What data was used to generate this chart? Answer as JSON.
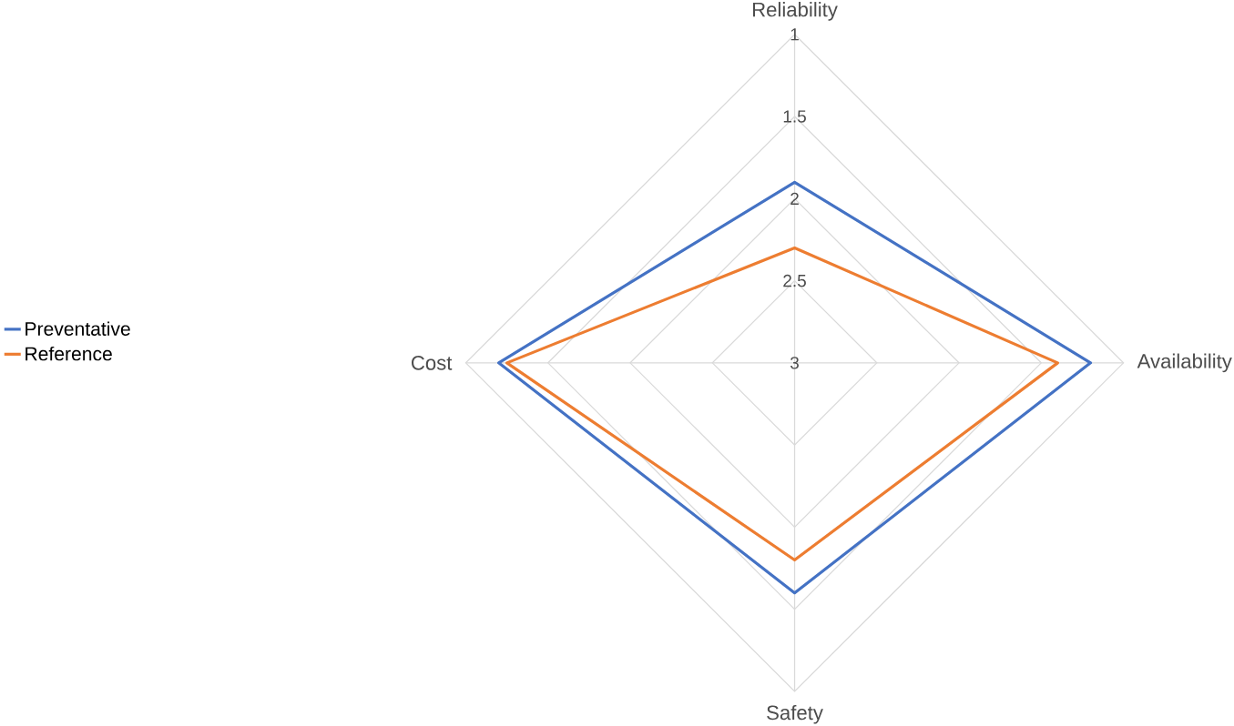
{
  "chart_data": {
    "type": "radar",
    "categories": [
      "Reliability",
      "Availability",
      "Safety",
      "Cost"
    ],
    "series": [
      {
        "name": "Preventative",
        "color": "#4472c4",
        "values": [
          1.9,
          1.2,
          1.6,
          1.2
        ]
      },
      {
        "name": "Reference",
        "color": "#ed7d31",
        "values": [
          2.3,
          1.4,
          1.8,
          1.25
        ]
      }
    ],
    "ylim": [
      3,
      1
    ],
    "yticks": [
      1,
      1.5,
      2,
      2.5,
      3
    ],
    "grid": true,
    "legend": "left"
  }
}
